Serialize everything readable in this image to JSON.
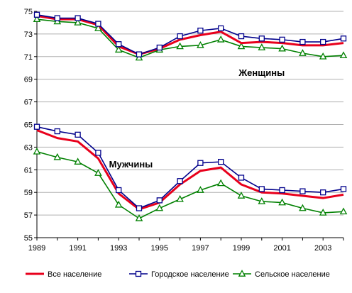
{
  "chart_data": {
    "type": "line",
    "title": "",
    "xlabel": "",
    "ylabel": "",
    "x": [
      1989,
      1990,
      1991,
      1992,
      1993,
      1994,
      1995,
      1996,
      1997,
      1998,
      1999,
      2000,
      2001,
      2002,
      2003,
      2004
    ],
    "x_tick_labels": [
      "1989",
      "1991",
      "1993",
      "1995",
      "1997",
      "1999",
      "2001",
      "2003"
    ],
    "xlim": [
      1989,
      2004
    ],
    "ylim": [
      55,
      75
    ],
    "y_ticks": [
      55,
      57,
      59,
      61,
      63,
      65,
      67,
      69,
      71,
      73,
      75
    ],
    "grid": "horizontal",
    "legend_position": "bottom",
    "annotations": [
      {
        "text": "Женщины",
        "x": 2000.0,
        "y": 69.3
      },
      {
        "text": "Мужчины",
        "x": 1993.6,
        "y": 61.2
      }
    ],
    "series": [
      {
        "name": "Все население",
        "group": "women",
        "color": "#e8001c",
        "marker": "none",
        "values": [
          74.6,
          74.3,
          74.3,
          73.8,
          71.9,
          71.2,
          71.7,
          72.5,
          72.9,
          73.2,
          72.2,
          72.3,
          72.2,
          72.0,
          72.0,
          72.2
        ]
      },
      {
        "name": "Городское население",
        "group": "women",
        "color": "#00008b",
        "marker": "square",
        "values": [
          74.7,
          74.4,
          74.4,
          73.9,
          72.1,
          71.2,
          71.8,
          72.8,
          73.3,
          73.5,
          72.8,
          72.6,
          72.5,
          72.3,
          72.3,
          72.6
        ]
      },
      {
        "name": "Сельское население",
        "group": "women",
        "color": "#008000",
        "marker": "triangle",
        "values": [
          74.3,
          74.1,
          74.0,
          73.5,
          71.6,
          70.9,
          71.6,
          71.9,
          72.0,
          72.5,
          71.9,
          71.8,
          71.7,
          71.3,
          71.0,
          71.1
        ]
      },
      {
        "name": "Все население",
        "group": "men",
        "color": "#e8001c",
        "marker": "none",
        "values": [
          64.5,
          63.8,
          63.5,
          62.0,
          58.9,
          57.5,
          58.1,
          59.7,
          60.9,
          61.2,
          59.7,
          59.0,
          58.9,
          58.7,
          58.5,
          58.8
        ]
      },
      {
        "name": "Городское население",
        "group": "men",
        "color": "#00008b",
        "marker": "square",
        "values": [
          64.8,
          64.4,
          64.1,
          62.5,
          59.2,
          57.6,
          58.3,
          60.0,
          61.6,
          61.7,
          60.3,
          59.3,
          59.2,
          59.1,
          59.0,
          59.3
        ]
      },
      {
        "name": "Сельское население",
        "group": "men",
        "color": "#008000",
        "marker": "triangle",
        "values": [
          62.6,
          62.1,
          61.7,
          60.7,
          57.9,
          56.7,
          57.6,
          58.4,
          59.2,
          59.8,
          58.7,
          58.2,
          58.1,
          57.6,
          57.2,
          57.3
        ]
      }
    ],
    "legend": [
      {
        "label": "Все население",
        "color": "#e8001c",
        "marker": "none"
      },
      {
        "label": "Городское население",
        "color": "#00008b",
        "marker": "square"
      },
      {
        "label": "Сельское население",
        "color": "#008000",
        "marker": "triangle"
      }
    ]
  }
}
